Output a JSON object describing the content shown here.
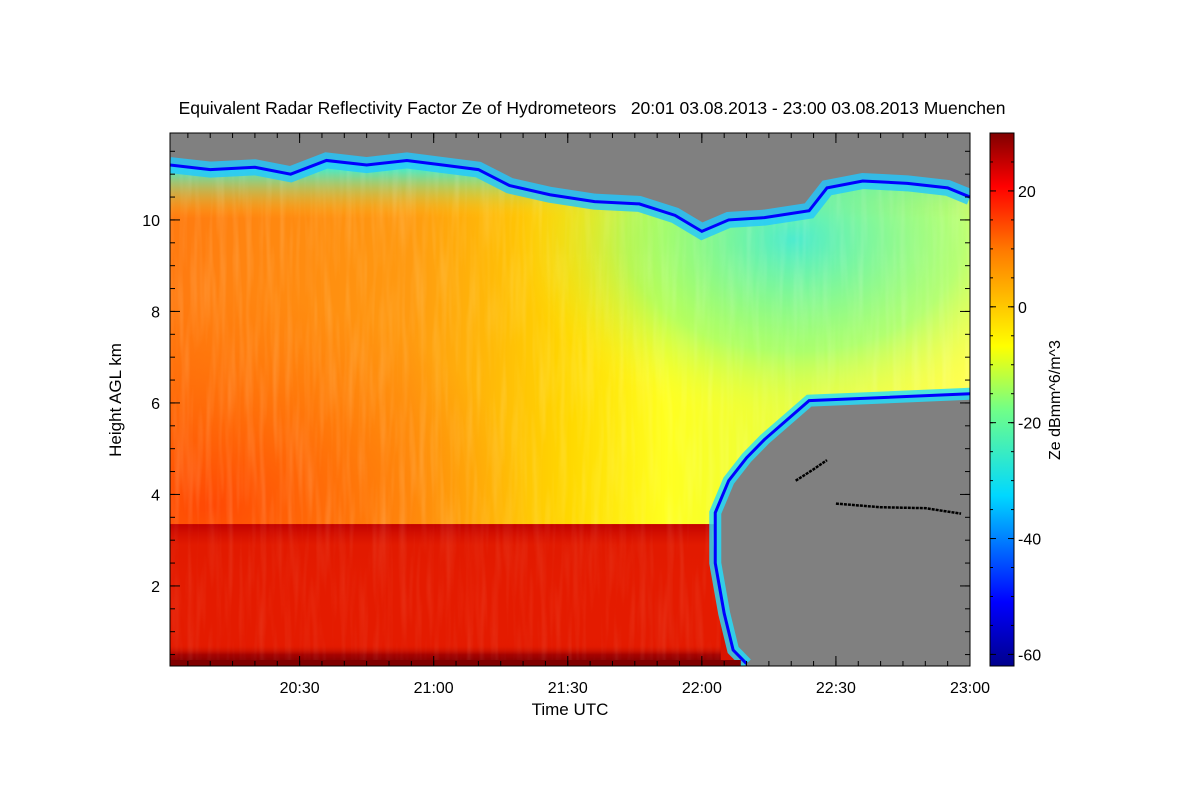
{
  "chart_data": {
    "type": "heatmap",
    "title": "Equivalent Radar Reflectivity Factor Ze of Hydrometeors   20:01 03.08.2013 - 23:00 03.08.2013 Muenchen",
    "xlabel": "Time UTC",
    "ylabel": "Height AGL km",
    "xlim": [
      "20:01",
      "23:00"
    ],
    "xlim_minutes": [
      1201,
      1380
    ],
    "ylim": [
      0.25,
      11.9
    ],
    "x_ticks": [
      {
        "label": "20:30",
        "minute": 1230
      },
      {
        "label": "21:00",
        "minute": 1260
      },
      {
        "label": "21:30",
        "minute": 1290
      },
      {
        "label": "22:00",
        "minute": 1320
      },
      {
        "label": "22:30",
        "minute": 1350
      },
      {
        "label": "23:00",
        "minute": 1380
      }
    ],
    "y_ticks": [
      2,
      4,
      6,
      8,
      10
    ],
    "colorbar": {
      "label": "Ze dBmm^6/m^3",
      "range": [
        -62,
        30
      ],
      "ticks": [
        20,
        0,
        -20,
        -40,
        -60
      ],
      "colormap": "jet"
    },
    "colors": {
      "no_signal": "#808080",
      "dark_red": "#800000",
      "red": "#e81e00",
      "orange": "#ff8a10",
      "yellow": "#ffff00",
      "cyan": "#20e0ff",
      "blue": "#0000ff",
      "dark_blue": "#00008c"
    },
    "regions": {
      "cloud_top_km": [
        {
          "minute": 1201,
          "height": 11.2
        },
        {
          "minute": 1210,
          "height": 11.1
        },
        {
          "minute": 1220,
          "height": 11.15
        },
        {
          "minute": 1228,
          "height": 11.0
        },
        {
          "minute": 1236,
          "height": 11.3
        },
        {
          "minute": 1245,
          "height": 11.2
        },
        {
          "minute": 1254,
          "height": 11.3
        },
        {
          "minute": 1262,
          "height": 11.2
        },
        {
          "minute": 1270,
          "height": 11.1
        },
        {
          "minute": 1277,
          "height": 10.75
        },
        {
          "minute": 1286,
          "height": 10.55
        },
        {
          "minute": 1296,
          "height": 10.4
        },
        {
          "minute": 1306,
          "height": 10.35
        },
        {
          "minute": 1314,
          "height": 10.1
        },
        {
          "minute": 1320,
          "height": 9.75
        },
        {
          "minute": 1326,
          "height": 10.0
        },
        {
          "minute": 1334,
          "height": 10.05
        },
        {
          "minute": 1344,
          "height": 10.2
        },
        {
          "minute": 1348,
          "height": 10.7
        },
        {
          "minute": 1356,
          "height": 10.85
        },
        {
          "minute": 1366,
          "height": 10.8
        },
        {
          "minute": 1375,
          "height": 10.7
        },
        {
          "minute": 1380,
          "height": 10.5
        }
      ],
      "cloud_base_km": [
        {
          "minute": 1344,
          "height": 6.05
        },
        {
          "minute": 1334,
          "height": 5.2
        },
        {
          "minute": 1330,
          "height": 4.8
        },
        {
          "minute": 1326,
          "height": 4.3
        },
        {
          "minute": 1323,
          "height": 3.6
        },
        {
          "minute": 1323,
          "height": 2.5
        },
        {
          "minute": 1325,
          "height": 1.4
        },
        {
          "minute": 1327,
          "height": 0.6
        },
        {
          "minute": 1330,
          "height": 0.3
        }
      ],
      "bright_band_top_km": 3.35,
      "bright_band_start_minute": 1201,
      "bright_band_end_minute": 1322,
      "right_edge_base_km": 6.2
    },
    "feature_traces": [
      {
        "kind": "black-trace",
        "points": [
          [
            1350,
            3.8
          ],
          [
            1360,
            3.72
          ],
          [
            1370,
            3.7
          ],
          [
            1378,
            3.58
          ]
        ]
      },
      {
        "kind": "black-trace",
        "points": [
          [
            1341,
            4.3
          ],
          [
            1345,
            4.55
          ],
          [
            1348,
            4.75
          ]
        ]
      }
    ]
  }
}
